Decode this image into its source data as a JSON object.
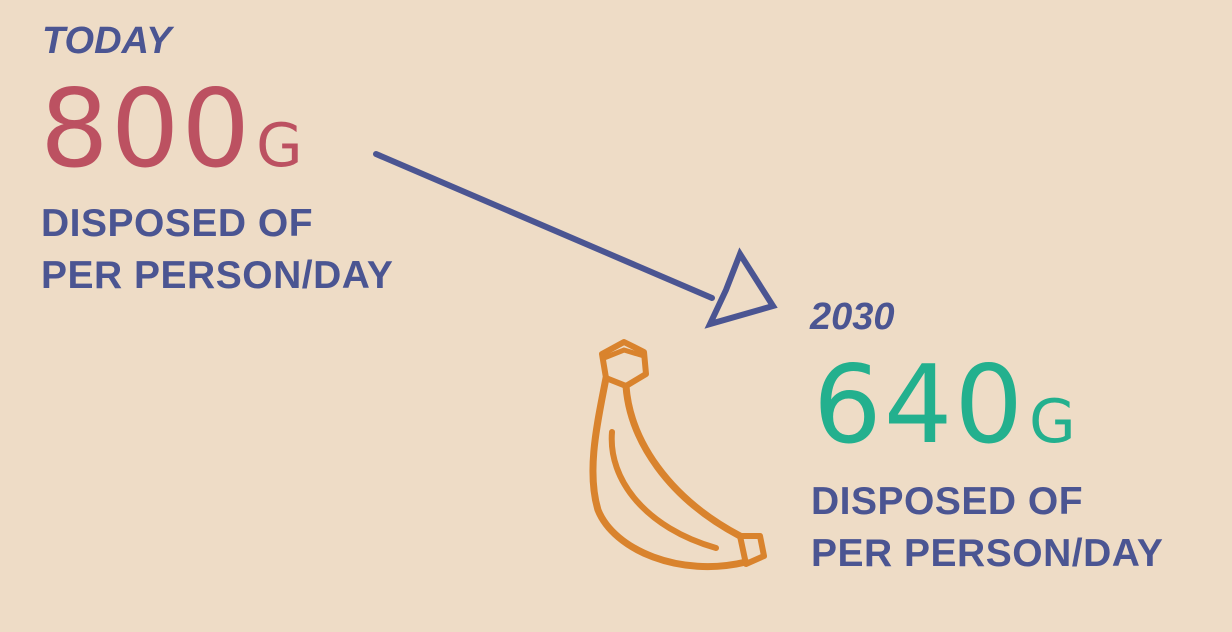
{
  "today": {
    "label": "TODAY",
    "amount": "800",
    "unit": "G",
    "caption_line1": "DISPOSED OF",
    "caption_line2": "PER PERSON/DAY"
  },
  "future": {
    "label": "2030",
    "amount": "640",
    "unit": "G",
    "caption_line1": "DISPOSED OF",
    "caption_line2": "PER PERSON/DAY"
  },
  "icons": {
    "arrow": "arrow-down-right-icon",
    "banana": "banana-icon"
  },
  "colors": {
    "background": "#eedcc6",
    "navy": "#4b5592",
    "today_amount": "#bc5161",
    "future_amount": "#23b08e",
    "banana": "#d9832d"
  }
}
